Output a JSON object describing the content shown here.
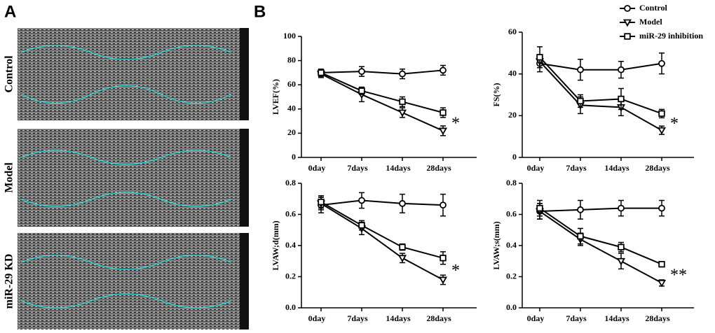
{
  "panels": {
    "a": "A",
    "b": "B"
  },
  "echo_labels": [
    "Control",
    "Model",
    "miR-29 KD"
  ],
  "chart_data": [
    {
      "type": "line",
      "y_label": "LVEF(%)",
      "categories": [
        "0day",
        "7days",
        "14days",
        "28days"
      ],
      "ylim": [
        0,
        100
      ],
      "yticks": [
        0,
        20,
        40,
        60,
        80,
        100
      ],
      "annotation": "*",
      "series": [
        {
          "name": "Control",
          "marker": "circle",
          "color": "#000000",
          "values": [
            70,
            71,
            69,
            72
          ],
          "errors": [
            3,
            4,
            4,
            4
          ]
        },
        {
          "name": "Model",
          "marker": "triangle",
          "color": "#000000",
          "values": [
            69,
            52,
            37,
            22
          ],
          "errors": [
            3,
            6,
            4,
            4
          ]
        },
        {
          "name": "miR-29 inhibition",
          "marker": "square",
          "color": "#000000",
          "values": [
            70,
            55,
            46,
            37
          ],
          "errors": [
            3,
            3,
            4,
            4
          ]
        }
      ]
    },
    {
      "type": "line",
      "y_label": "FS(%)",
      "categories": [
        "0day",
        "7days",
        "14days",
        "28days"
      ],
      "ylim": [
        0,
        60
      ],
      "yticks": [
        0,
        20,
        40,
        60
      ],
      "annotation": "*",
      "series": [
        {
          "marker": "circle",
          "color": "#000000",
          "values": [
            45,
            42,
            42,
            45
          ],
          "errors": [
            4,
            5,
            4,
            5
          ]
        },
        {
          "marker": "triangle",
          "color": "#000000",
          "values": [
            46,
            25,
            24,
            13
          ],
          "errors": [
            3,
            4,
            4,
            2
          ]
        },
        {
          "marker": "square",
          "color": "#000000",
          "values": [
            48,
            27,
            28,
            21
          ],
          "errors": [
            5,
            3,
            5,
            2
          ]
        }
      ]
    },
    {
      "type": "line",
      "y_label": "LVAW;d(mm)",
      "categories": [
        "0day",
        "7days",
        "14days",
        "28days"
      ],
      "ylim": [
        0,
        0.8
      ],
      "yticks": [
        {
          "value": 0,
          "label": "0.0"
        },
        0.2,
        0.4,
        0.6,
        0.8
      ],
      "annotation": "*",
      "series": [
        {
          "marker": "circle",
          "color": "#000000",
          "values": [
            0.66,
            0.69,
            0.67,
            0.66
          ],
          "errors": [
            0.05,
            0.05,
            0.06,
            0.07
          ]
        },
        {
          "marker": "triangle",
          "color": "#000000",
          "values": [
            0.67,
            0.51,
            0.32,
            0.18
          ],
          "errors": [
            0.04,
            0.04,
            0.03,
            0.03
          ]
        },
        {
          "marker": "square",
          "color": "#000000",
          "values": [
            0.68,
            0.53,
            0.39,
            0.32
          ],
          "errors": [
            0.04,
            0.03,
            0.02,
            0.04
          ]
        }
      ]
    },
    {
      "type": "line",
      "y_label": "LVAW;s(mm)",
      "categories": [
        "0day",
        "7days",
        "14days",
        "28days"
      ],
      "ylim": [
        0,
        0.8
      ],
      "yticks": [
        {
          "value": 0,
          "label": "0.0"
        },
        0.2,
        0.4,
        0.6,
        0.8
      ],
      "annotation": "**",
      "series": [
        {
          "marker": "circle",
          "color": "#000000",
          "values": [
            0.62,
            0.63,
            0.64,
            0.64
          ],
          "errors": [
            0.05,
            0.06,
            0.05,
            0.05
          ]
        },
        {
          "marker": "triangle",
          "color": "#000000",
          "values": [
            0.62,
            0.44,
            0.3,
            0.16
          ],
          "errors": [
            0.05,
            0.04,
            0.05,
            0.02
          ]
        },
        {
          "marker": "square",
          "color": "#000000",
          "values": [
            0.64,
            0.46,
            0.39,
            0.28
          ],
          "errors": [
            0.05,
            0.05,
            0.03,
            0.01
          ]
        }
      ]
    }
  ]
}
